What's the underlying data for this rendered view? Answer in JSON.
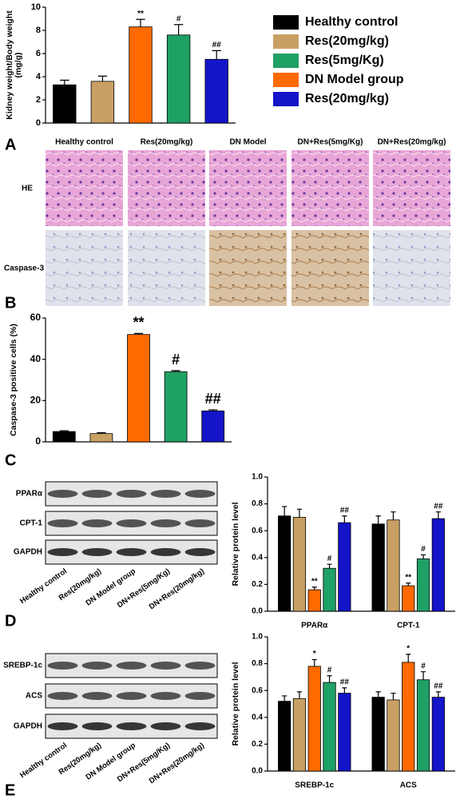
{
  "panel_labels": [
    "A",
    "B",
    "C",
    "D",
    "E"
  ],
  "histology": {
    "columns": [
      "Healthy control",
      "Res(20mg/kg)",
      "DN Model",
      "DN+Res(5mg/Kg)",
      "DN+Res(20mg/kg)"
    ],
    "rows": [
      "HE",
      "Caspase-3"
    ]
  },
  "blots": [
    {
      "rows": [
        "PPARα",
        "CPT-1",
        "GAPDH"
      ],
      "lanes": [
        "Healthy control",
        "Res(20mg/kg)",
        "DN Model group",
        "DN+Res(5mg/Kg)",
        "DN+Res(20mg/kg)"
      ]
    },
    {
      "rows": [
        "SREBP-1c",
        "ACS",
        "GAPDH"
      ],
      "lanes": [
        "Healthy control",
        "Res(20mg/kg)",
        "DN Model group",
        "DN+Res(5mg/Kg)",
        "DN+Res(20mg/kg)"
      ]
    }
  ],
  "chart_data": [
    {
      "type": "bar",
      "ylabel": [
        "Kidney weight/Body weight",
        "(mg/g)"
      ],
      "values": [
        3.3,
        3.6,
        8.3,
        7.6,
        5.5
      ],
      "errors": [
        0.4,
        0.45,
        0.65,
        0.9,
        0.75
      ],
      "colors": [
        "#000000",
        "#c8a064",
        "#ff6a00",
        "#1fa064",
        "#1414c8"
      ],
      "annotations": [
        null,
        null,
        "**",
        "#",
        "##"
      ],
      "ylim": [
        0,
        10
      ],
      "yticks": [
        0,
        2,
        4,
        6,
        8,
        10
      ],
      "legend": [
        {
          "name": "Healthy control",
          "color": "#000000"
        },
        {
          "name": "Res(20mg/kg)",
          "color": "#c8a064"
        },
        {
          "name": "Res(5mg/Kg)",
          "color": "#1fa064"
        },
        {
          "name": "DN Model group",
          "color": "#ff6a00"
        },
        {
          "name": "Res(20mg/kg)",
          "color": "#1414c8"
        }
      ]
    },
    {
      "type": "bar",
      "ylabel": [
        "Caspase-3 positive cells (%)"
      ],
      "values": [
        5,
        4,
        52,
        34,
        15
      ],
      "errors": [
        0.4,
        0.4,
        0.5,
        0.5,
        0.5
      ],
      "colors": [
        "#000000",
        "#c8a064",
        "#ff6a00",
        "#1fa064",
        "#1414c8"
      ],
      "annotations": [
        null,
        null,
        "**",
        "#",
        "##"
      ],
      "ylim": [
        0,
        60
      ],
      "yticks": [
        0,
        20,
        40,
        60
      ]
    },
    {
      "type": "grouped-bar",
      "ylabel": [
        "Relative protein level"
      ],
      "categories": [
        "PPARα",
        "CPT-1"
      ],
      "series": [
        {
          "color": "#000000",
          "values": [
            0.71,
            0.65
          ],
          "errors": [
            0.07,
            0.06
          ],
          "annotations": [
            null,
            null
          ]
        },
        {
          "color": "#c8a064",
          "values": [
            0.7,
            0.68
          ],
          "errors": [
            0.06,
            0.06
          ],
          "annotations": [
            null,
            null
          ]
        },
        {
          "color": "#ff6a00",
          "values": [
            0.16,
            0.19
          ],
          "errors": [
            0.02,
            0.02
          ],
          "annotations": [
            "**",
            "**"
          ]
        },
        {
          "color": "#1fa064",
          "values": [
            0.32,
            0.39
          ],
          "errors": [
            0.03,
            0.03
          ],
          "annotations": [
            "#",
            "#"
          ]
        },
        {
          "color": "#1414c8",
          "values": [
            0.66,
            0.69
          ],
          "errors": [
            0.05,
            0.05
          ],
          "annotations": [
            "##",
            "##"
          ]
        }
      ],
      "ylim": [
        0,
        1
      ],
      "yticks": [
        {
          "value": 0,
          "label": "0.0"
        },
        0.2,
        0.4,
        0.6,
        0.8,
        {
          "value": 1,
          "label": "1.0"
        }
      ]
    },
    {
      "type": "grouped-bar",
      "ylabel": [
        "Relative protein level"
      ],
      "categories": [
        "SREBP-1c",
        "ACS"
      ],
      "series": [
        {
          "color": "#000000",
          "values": [
            0.52,
            0.55
          ],
          "errors": [
            0.04,
            0.04
          ],
          "annotations": [
            null,
            null
          ]
        },
        {
          "color": "#c8a064",
          "values": [
            0.54,
            0.53
          ],
          "errors": [
            0.05,
            0.05
          ],
          "annotations": [
            null,
            null
          ]
        },
        {
          "color": "#ff6a00",
          "values": [
            0.78,
            0.81
          ],
          "errors": [
            0.05,
            0.06
          ],
          "annotations": [
            "*",
            "*"
          ]
        },
        {
          "color": "#1fa064",
          "values": [
            0.66,
            0.68
          ],
          "errors": [
            0.05,
            0.06
          ],
          "annotations": [
            "#",
            "#"
          ]
        },
        {
          "color": "#1414c8",
          "values": [
            0.58,
            0.55
          ],
          "errors": [
            0.04,
            0.04
          ],
          "annotations": [
            "##",
            "##"
          ]
        }
      ],
      "ylim": [
        0,
        1
      ],
      "yticks": [
        {
          "value": 0,
          "label": "0.0"
        },
        0.2,
        0.4,
        0.6,
        0.8,
        {
          "value": 1,
          "label": "1.0"
        }
      ]
    }
  ]
}
